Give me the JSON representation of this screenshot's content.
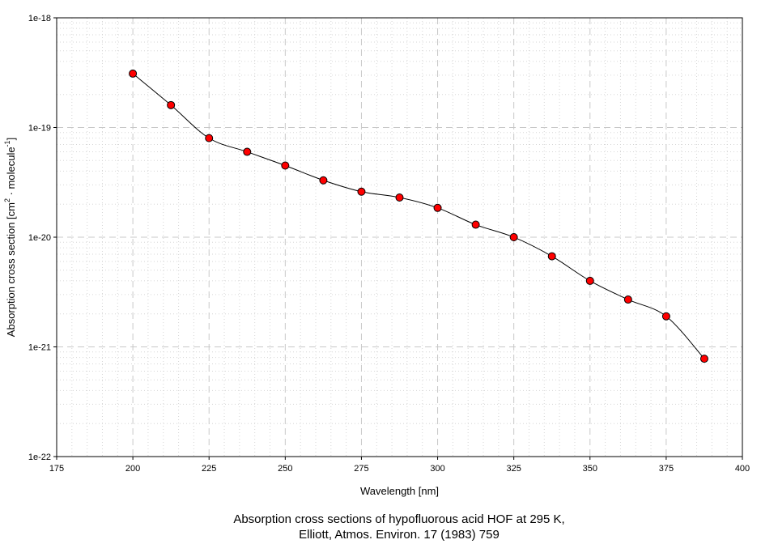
{
  "chart_data": {
    "type": "scatter",
    "xlabel": "Wavelength [nm]",
    "ylabel": {
      "prefix": "Absorption cross section [cm",
      "sup1": "2",
      "middle": " · molecule",
      "sup2": "-1",
      "suffix": "]"
    },
    "xlim": [
      175,
      400
    ],
    "ylim": [
      1e-22,
      1e-18
    ],
    "yscale": "log",
    "grid": true,
    "x_ticks": [
      "175",
      "200",
      "225",
      "250",
      "275",
      "300",
      "325",
      "350",
      "375",
      "400"
    ],
    "y_ticks": [
      "1e-18",
      "1e-19",
      "1e-20",
      "1e-21",
      "1e-22"
    ],
    "marker_color": "#ff0000",
    "line_color": "#000000",
    "series": [
      {
        "x": [
          200,
          212.5,
          225,
          237.5,
          250,
          262.5,
          275,
          287.5,
          300,
          312.5,
          325,
          337.5,
          350,
          362.5,
          375,
          387.5
        ],
        "y": [
          3.1e-19,
          1.6e-19,
          8e-20,
          6e-20,
          4.5e-20,
          3.3e-20,
          2.6e-20,
          2.3e-20,
          1.85e-20,
          1.3e-20,
          1e-20,
          6.7e-21,
          4e-21,
          2.7e-21,
          1.9e-21,
          7.8e-22
        ]
      }
    ]
  },
  "caption": {
    "line1": "Absorption cross sections of hypofluorous acid HOF at 295 K,",
    "line2": "Elliott, Atmos. Environ. 17 (1983) 759"
  }
}
